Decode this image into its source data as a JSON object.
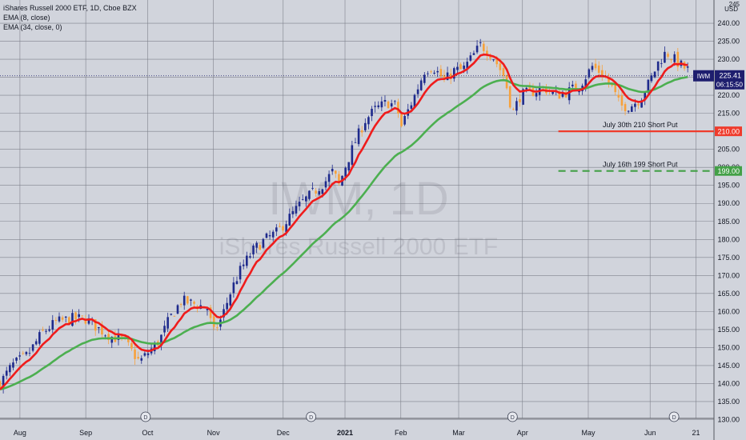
{
  "legend": {
    "symbol_line": "iShares Russell 2000 ETF, 1D, Cboe BZX",
    "ema_fast": "EMA (8, close)",
    "ema_slow": "EMA (34, close, 0)"
  },
  "watermark": {
    "ticker": "IWM, 1D",
    "name": "iShares Russell 2000 ETF"
  },
  "currency": "USD",
  "y_axis": {
    "min": 129,
    "max": 246,
    "ticks": [
      130,
      135,
      140,
      145,
      150,
      155,
      160,
      165,
      170,
      175,
      180,
      185,
      190,
      195,
      200,
      205,
      210,
      215,
      220,
      225,
      230,
      235,
      240
    ],
    "tick_labels": [
      "130.00",
      "135.00",
      "140.00",
      "145.00",
      "150.00",
      "155.00",
      "160.00",
      "165.00",
      "170.00",
      "175.00",
      "180.00",
      "185.00",
      "190.00",
      "195.00",
      "200.00",
      "205.00",
      "210.00",
      "215.00",
      "220.00",
      "225.00",
      "230.00",
      "235.00",
      "240.00"
    ],
    "top_partial_label": "245"
  },
  "x_axis": {
    "labels": [
      "Aug",
      "Sep",
      "Oct",
      "Nov",
      "Dec",
      "2021",
      "Feb",
      "Mar",
      "Apr",
      "May",
      "Jun",
      "21"
    ],
    "label_index": [
      20,
      86,
      148,
      214,
      284,
      346,
      402,
      460,
      524,
      590,
      652,
      698
    ]
  },
  "dividends": {
    "symbol": "D",
    "index": [
      146,
      312,
      514,
      676
    ]
  },
  "last_price": {
    "ticker": "IWM",
    "price": 225.41,
    "price_label": "225.41",
    "countdown": "06:15:50",
    "color": "#1e1e6e"
  },
  "hlines": [
    {
      "value": 210,
      "label": "210.00",
      "text": "July 30th 210 Short Put",
      "color": "#ef3b2c",
      "style": "solid",
      "start_index": 560
    },
    {
      "value": 199,
      "label": "199.00",
      "text": "July 16th 199 Short Put",
      "color": "#43a047",
      "style": "dashed",
      "start_index": 560
    }
  ],
  "colors": {
    "up": "#1e2a8c",
    "down": "#f7a13b",
    "ema_fast": "#ef1c1c",
    "ema_slow": "#4caf50",
    "grid": "#7f828c",
    "bg": "#d1d4dc"
  },
  "chart_data": {
    "type": "candlestick",
    "title": "iShares Russell 2000 ETF, 1D, Cboe BZX",
    "ylabel": "USD",
    "ylim": [
      129,
      246
    ],
    "key_points": [
      [
        0,
        140
      ],
      [
        12,
        145
      ],
      [
        28,
        148
      ],
      [
        42,
        154
      ],
      [
        56,
        157
      ],
      [
        72,
        158
      ],
      [
        86,
        158
      ],
      [
        100,
        155
      ],
      [
        112,
        153
      ],
      [
        124,
        152
      ],
      [
        140,
        146
      ],
      [
        150,
        149
      ],
      [
        160,
        152
      ],
      [
        170,
        158
      ],
      [
        182,
        163
      ],
      [
        196,
        162
      ],
      [
        208,
        161
      ],
      [
        214,
        154
      ],
      [
        222,
        158
      ],
      [
        232,
        166
      ],
      [
        242,
        172
      ],
      [
        254,
        177
      ],
      [
        266,
        180
      ],
      [
        278,
        182
      ],
      [
        290,
        186
      ],
      [
        302,
        190
      ],
      [
        314,
        193
      ],
      [
        326,
        196
      ],
      [
        334,
        199
      ],
      [
        340,
        195
      ],
      [
        346,
        200
      ],
      [
        356,
        207
      ],
      [
        366,
        213
      ],
      [
        376,
        216
      ],
      [
        388,
        218
      ],
      [
        398,
        217
      ],
      [
        402,
        211
      ],
      [
        408,
        215
      ],
      [
        416,
        220
      ],
      [
        426,
        227
      ],
      [
        434,
        228
      ],
      [
        446,
        224
      ],
      [
        456,
        227
      ],
      [
        464,
        227
      ],
      [
        472,
        230
      ],
      [
        482,
        234
      ],
      [
        494,
        231
      ],
      [
        506,
        225
      ],
      [
        514,
        215
      ],
      [
        522,
        220
      ],
      [
        534,
        221
      ],
      [
        546,
        222
      ],
      [
        558,
        220
      ],
      [
        570,
        221
      ],
      [
        582,
        223
      ],
      [
        594,
        228
      ],
      [
        604,
        226
      ],
      [
        614,
        222
      ],
      [
        622,
        217
      ],
      [
        632,
        217
      ],
      [
        642,
        219
      ],
      [
        652,
        224
      ],
      [
        660,
        229
      ],
      [
        668,
        232
      ],
      [
        676,
        230
      ],
      [
        684,
        228
      ],
      [
        690,
        227
      ]
    ],
    "series": [
      {
        "name": "EMA (8, close)",
        "values": "ema8"
      },
      {
        "name": "EMA (34, close, 0)",
        "values": "ema34"
      }
    ]
  }
}
